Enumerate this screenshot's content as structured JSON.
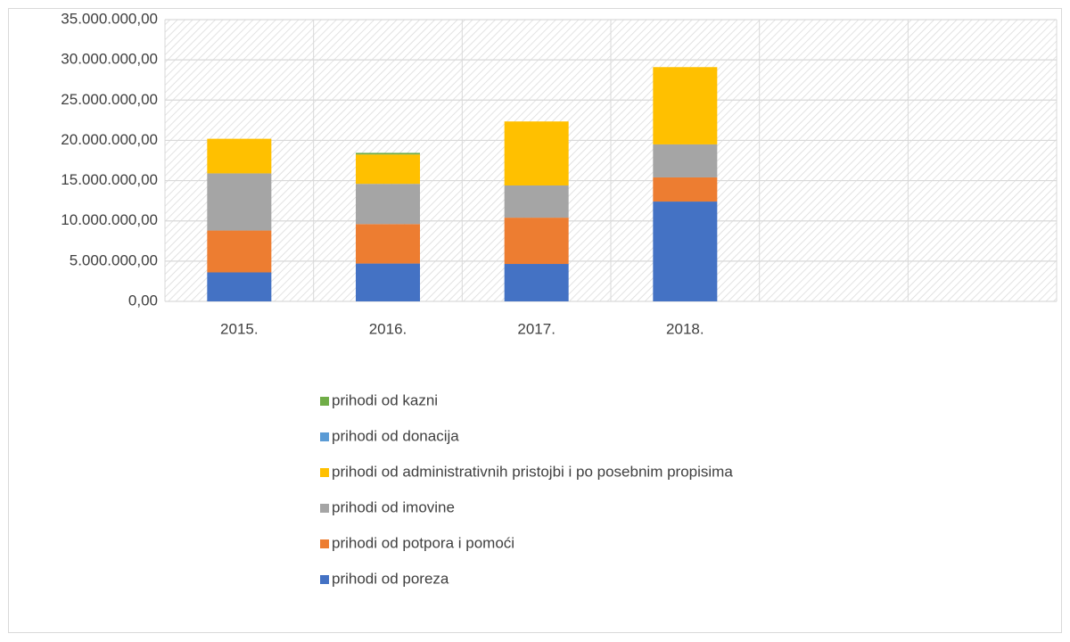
{
  "chart_data": {
    "type": "stacked_bar",
    "categories": [
      "2015.",
      "2016.",
      "2017.",
      "2018.",
      null,
      null
    ],
    "series": [
      {
        "name": "prihodi od poreza",
        "color": "#4472c4",
        "values": [
          3600000,
          4700000,
          4650000,
          12400000,
          null,
          null
        ]
      },
      {
        "name": "prihodi od potpora i pomoći",
        "color": "#ed7d31",
        "values": [
          5200000,
          4900000,
          5750000,
          3000000,
          null,
          null
        ]
      },
      {
        "name": "prihodi od imovine",
        "color": "#a5a5a5",
        "values": [
          7100000,
          5000000,
          4000000,
          4100000,
          null,
          null
        ]
      },
      {
        "name": "prihodi od administrativnih pristojbi i po posebnim propisima",
        "color": "#ffc000",
        "values": [
          4300000,
          3650000,
          7950000,
          9600000,
          null,
          null
        ]
      },
      {
        "name": "prihodi od donacija",
        "color": "#5b9bd5",
        "values": [
          0,
          0,
          0,
          0,
          null,
          null
        ]
      },
      {
        "name": "prihodi od kazni",
        "color": "#70ad47",
        "values": [
          0,
          200000,
          0,
          0,
          null,
          null
        ]
      }
    ],
    "ylim": [
      0,
      35000000
    ],
    "yticks": [
      {
        "value": 0,
        "label": "0,00"
      },
      {
        "value": 5000000,
        "label": "5.000.000,00"
      },
      {
        "value": 10000000,
        "label": "10.000.000,00"
      },
      {
        "value": 15000000,
        "label": "15.000.000,00"
      },
      {
        "value": 20000000,
        "label": "20.000.000,00"
      },
      {
        "value": 25000000,
        "label": "25.000.000,00"
      },
      {
        "value": 30000000,
        "label": "30.000.000,00"
      },
      {
        "value": 35000000,
        "label": "35.000.000,00"
      }
    ],
    "grid": true,
    "legend": "bottom"
  }
}
